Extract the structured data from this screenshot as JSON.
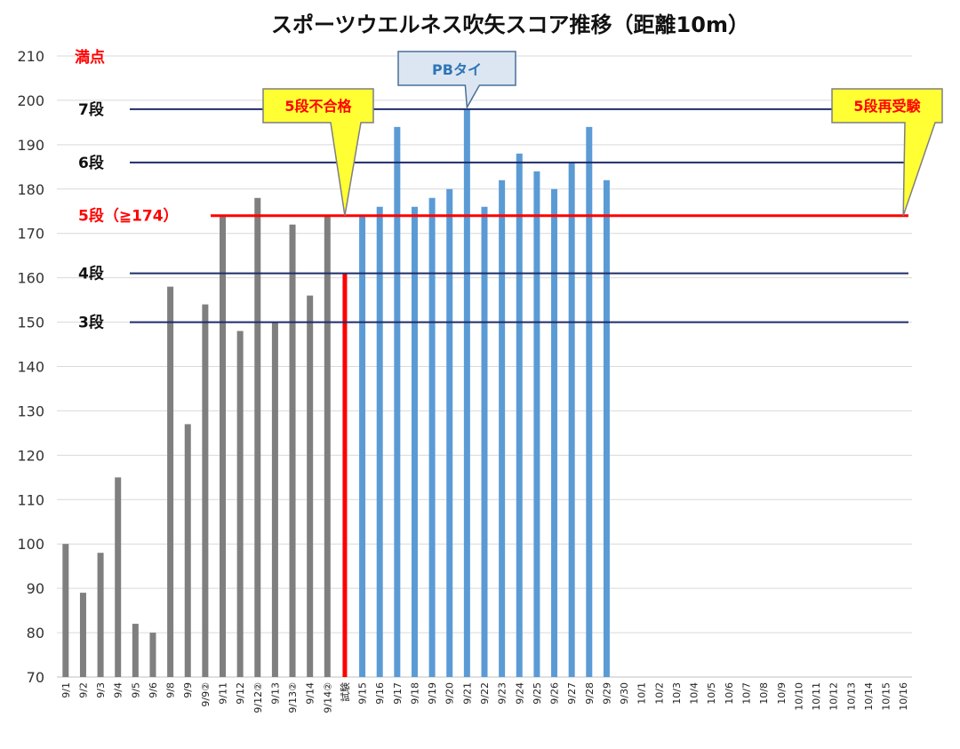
{
  "chart_data": {
    "type": "bar",
    "title": "スポーツウエルネス吹矢スコア推移（距離10m）",
    "ylim": [
      70,
      210
    ],
    "yticks": [
      70,
      80,
      90,
      100,
      110,
      120,
      130,
      140,
      150,
      160,
      170,
      180,
      190,
      200,
      210
    ],
    "grid": true,
    "categories": [
      "9/1",
      "9/2",
      "9/3",
      "9/4",
      "9/5",
      "9/6",
      "9/8",
      "9/9",
      "9/9②",
      "9/11",
      "9/12",
      "9/12②",
      "9/13",
      "9/13②",
      "9/14",
      "9/14②",
      "試験",
      "9/15",
      "9/16",
      "9/17",
      "9/18",
      "9/19",
      "9/20",
      "9/21",
      "9/22",
      "9/23",
      "9/24",
      "9/25",
      "9/26",
      "9/27",
      "9/28",
      "9/29",
      "9/30",
      "10/1",
      "10/2",
      "10/3",
      "10/4",
      "10/5",
      "10/6",
      "10/7",
      "10/8",
      "10/9",
      "10/10",
      "10/11",
      "10/12",
      "10/13",
      "10/14",
      "10/15",
      "10/16"
    ],
    "values": [
      100,
      89,
      98,
      115,
      82,
      80,
      158,
      127,
      154,
      174,
      148,
      178,
      150,
      172,
      156,
      174,
      161,
      174,
      176,
      194,
      176,
      178,
      180,
      198,
      176,
      182,
      188,
      184,
      180,
      186,
      194,
      182,
      null,
      null,
      null,
      null,
      null,
      null,
      null,
      null,
      null,
      null,
      null,
      null,
      null,
      null,
      null,
      null,
      null
    ],
    "bar_groups": [
      {
        "from": 0,
        "to": 15,
        "color": "#7f7f7f"
      },
      {
        "from": 16,
        "to": 16,
        "color": "#ff0000"
      },
      {
        "from": 17,
        "to": 31,
        "color": "#5b9bd5"
      }
    ],
    "reference_lines": [
      {
        "label": "7段",
        "value": 198,
        "color": "#1f2d6b",
        "label_color": "#111111"
      },
      {
        "label": "6段",
        "value": 186,
        "color": "#1f2d6b",
        "label_color": "#111111"
      },
      {
        "label": "5段（≧174）",
        "value": 174,
        "color": "#ff0000",
        "label_color": "#ff0000"
      },
      {
        "label": "4段",
        "value": 161,
        "color": "#1f2d6b",
        "label_color": "#111111"
      },
      {
        "label": "3段",
        "value": 150,
        "color": "#1f2d6b",
        "label_color": "#111111"
      }
    ],
    "max_label": {
      "label": "満点",
      "value": 210,
      "color": "#ff0000"
    },
    "annotations": [
      {
        "text": "PBタイ",
        "target_category": "9/21",
        "target_value": 198,
        "style": "blue-box"
      },
      {
        "text": "5段不合格",
        "target_category": "試験",
        "target_value": 174,
        "style": "yellow-box"
      },
      {
        "text": "5段再受験",
        "target_category": "10/16",
        "target_value": 174,
        "style": "yellow-box"
      }
    ]
  }
}
